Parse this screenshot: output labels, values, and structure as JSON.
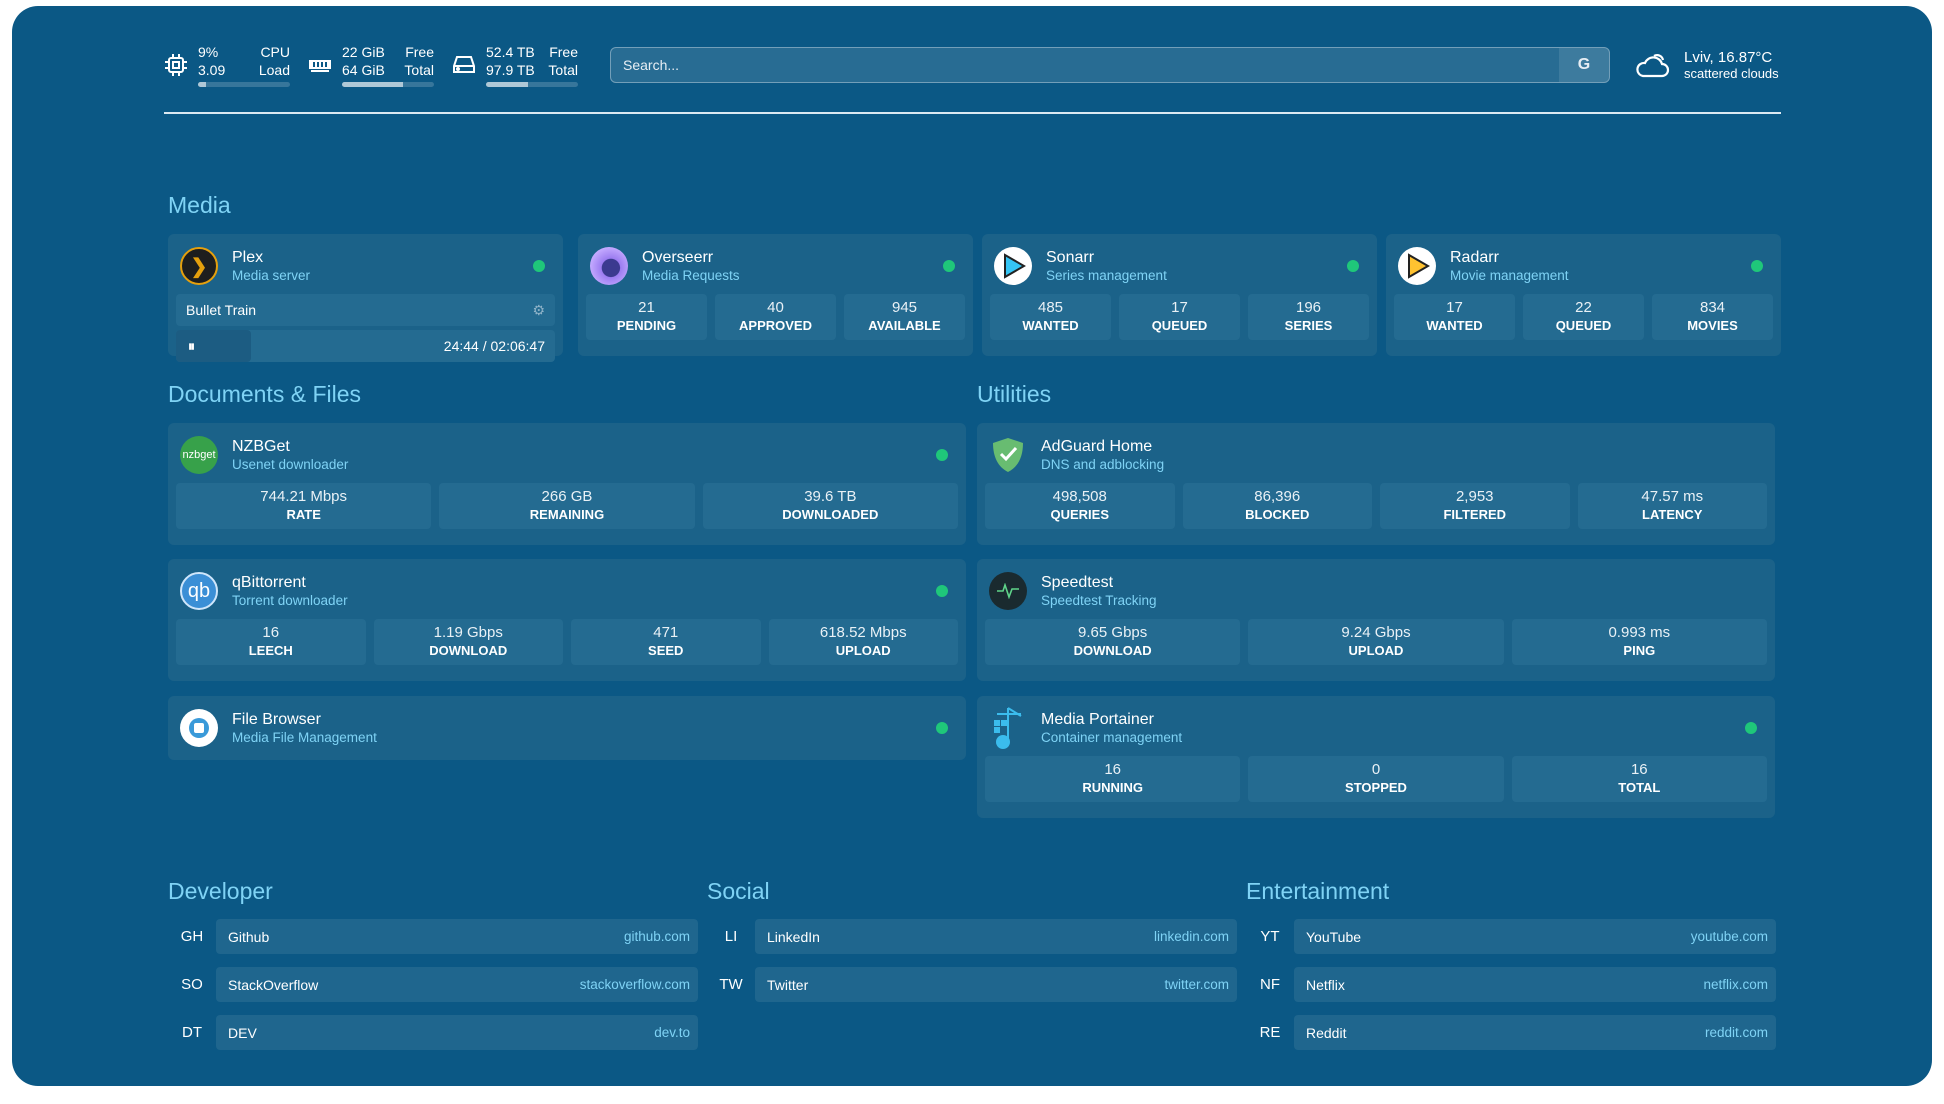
{
  "resources": {
    "cpu": {
      "icon": "cpu-icon",
      "value": "9%",
      "label": "CPU",
      "value2": "3.09",
      "label2": "Load",
      "percent": 9
    },
    "memory": {
      "icon": "memory-icon",
      "value": "22 GiB",
      "label": "Free",
      "value2": "64 GiB",
      "label2": "Total",
      "percent": 66
    },
    "disk": {
      "icon": "disk-icon",
      "value": "52.4 TB",
      "label": "Free",
      "value2": "97.9 TB",
      "label2": "Total",
      "percent": 46
    }
  },
  "search": {
    "placeholder": "Search...",
    "button": "G"
  },
  "weather": {
    "icon": "cloud-icon",
    "location": "Lviv, 16.87°C",
    "condition": "scattered clouds"
  },
  "sections": {
    "media": "Media",
    "docs": "Documents & Files",
    "utilities": "Utilities",
    "developer": "Developer",
    "social": "Social",
    "entertainment": "Entertainment"
  },
  "media": [
    {
      "name": "Plex",
      "desc": "Media server",
      "now_playing": "Bullet Train",
      "time": "24:44 / 02:06:47",
      "progress_percent": 20
    },
    {
      "name": "Overseerr",
      "desc": "Media Requests",
      "stats": [
        {
          "v": "21",
          "l": "PENDING"
        },
        {
          "v": "40",
          "l": "APPROVED"
        },
        {
          "v": "945",
          "l": "AVAILABLE"
        }
      ]
    },
    {
      "name": "Sonarr",
      "desc": "Series management",
      "stats": [
        {
          "v": "485",
          "l": "WANTED"
        },
        {
          "v": "17",
          "l": "QUEUED"
        },
        {
          "v": "196",
          "l": "SERIES"
        }
      ]
    },
    {
      "name": "Radarr",
      "desc": "Movie management",
      "stats": [
        {
          "v": "17",
          "l": "WANTED"
        },
        {
          "v": "22",
          "l": "QUEUED"
        },
        {
          "v": "834",
          "l": "MOVIES"
        }
      ]
    }
  ],
  "docs": [
    {
      "name": "NZBGet",
      "desc": "Usenet downloader",
      "icon_text": "nzbget",
      "stats": [
        {
          "v": "744.21 Mbps",
          "l": "RATE"
        },
        {
          "v": "266 GB",
          "l": "REMAINING"
        },
        {
          "v": "39.6 TB",
          "l": "DOWNLOADED"
        }
      ]
    },
    {
      "name": "qBittorrent",
      "desc": "Torrent downloader",
      "icon_text": "qb",
      "stats": [
        {
          "v": "16",
          "l": "LEECH"
        },
        {
          "v": "1.19 Gbps",
          "l": "DOWNLOAD"
        },
        {
          "v": "471",
          "l": "SEED"
        },
        {
          "v": "618.52 Mbps",
          "l": "UPLOAD"
        }
      ]
    },
    {
      "name": "File Browser",
      "desc": "Media File Management"
    }
  ],
  "utilities": [
    {
      "name": "AdGuard Home",
      "desc": "DNS and adblocking",
      "stats": [
        {
          "v": "498,508",
          "l": "QUERIES"
        },
        {
          "v": "86,396",
          "l": "BLOCKED"
        },
        {
          "v": "2,953",
          "l": "FILTERED"
        },
        {
          "v": "47.57 ms",
          "l": "LATENCY"
        }
      ]
    },
    {
      "name": "Speedtest",
      "desc": "Speedtest Tracking",
      "stats": [
        {
          "v": "9.65 Gbps",
          "l": "DOWNLOAD"
        },
        {
          "v": "9.24 Gbps",
          "l": "UPLOAD"
        },
        {
          "v": "0.993 ms",
          "l": "PING"
        }
      ]
    },
    {
      "name": "Media Portainer",
      "desc": "Container management",
      "stats": [
        {
          "v": "16",
          "l": "RUNNING"
        },
        {
          "v": "0",
          "l": "STOPPED"
        },
        {
          "v": "16",
          "l": "TOTAL"
        }
      ]
    }
  ],
  "bookmarks": {
    "developer": [
      {
        "abbr": "GH",
        "name": "Github",
        "url": "github.com"
      },
      {
        "abbr": "SO",
        "name": "StackOverflow",
        "url": "stackoverflow.com"
      },
      {
        "abbr": "DT",
        "name": "DEV",
        "url": "dev.to"
      }
    ],
    "social": [
      {
        "abbr": "LI",
        "name": "LinkedIn",
        "url": "linkedin.com"
      },
      {
        "abbr": "TW",
        "name": "Twitter",
        "url": "twitter.com"
      }
    ],
    "entertainment": [
      {
        "abbr": "YT",
        "name": "YouTube",
        "url": "youtube.com"
      },
      {
        "abbr": "NF",
        "name": "Netflix",
        "url": "netflix.com"
      },
      {
        "abbr": "RE",
        "name": "Reddit",
        "url": "reddit.com"
      }
    ]
  },
  "colors": {
    "background": "#0b5885",
    "card": "#1b6289",
    "accent": "#7fd3f5",
    "status_ok": "#1fc77a"
  }
}
